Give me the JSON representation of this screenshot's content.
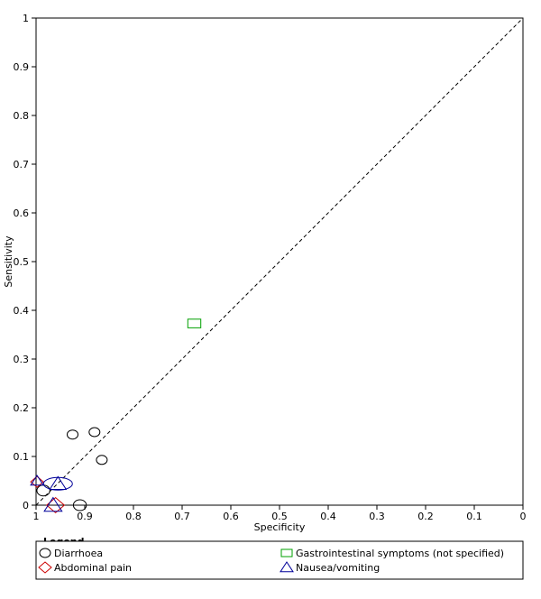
{
  "chart_data": {
    "type": "scatter",
    "xlabel": "Specificity",
    "ylabel": "Sensitivity",
    "x_reversed": true,
    "xlim": [
      1,
      0
    ],
    "ylim": [
      0,
      1
    ],
    "x_ticks": [
      "1",
      "0.9",
      "0.8",
      "0.7",
      "0.6",
      "0.5",
      "0.4",
      "0.3",
      "0.2",
      "0.1",
      "0"
    ],
    "y_ticks": [
      "0",
      "0.1",
      "0.2",
      "0.3",
      "0.4",
      "0.5",
      "0.6",
      "0.7",
      "0.8",
      "0.9",
      "1"
    ],
    "diagonal_reference_line": true,
    "grid": false,
    "legend": {
      "title": "Legend",
      "position": "bottom",
      "entries": [
        {
          "name": "Diarrhoea",
          "marker": "circle",
          "color": "#000000"
        },
        {
          "name": "Gastrointestinal symptoms (not specified)",
          "marker": "square",
          "color": "#00a000"
        },
        {
          "name": "Abdominal pain",
          "marker": "diamond",
          "color": "#cc0000"
        },
        {
          "name": "Nausea/vomiting",
          "marker": "triangle",
          "color": "#000099"
        }
      ]
    },
    "series": [
      {
        "name": "Diarrhoea",
        "marker": "circle",
        "color": "#000000",
        "points": [
          {
            "x": 0.925,
            "y": 0.145,
            "size": 1
          },
          {
            "x": 0.88,
            "y": 0.15,
            "size": 1
          },
          {
            "x": 0.865,
            "y": 0.093,
            "size": 1
          },
          {
            "x": 0.985,
            "y": 0.03,
            "size": 1.2
          },
          {
            "x": 0.91,
            "y": 0.0,
            "size": 1.2
          }
        ]
      },
      {
        "name": "Gastrointestinal symptoms (not specified)",
        "marker": "square",
        "color": "#00a000",
        "points": [
          {
            "x": 0.675,
            "y": 0.373,
            "size": 1.2
          }
        ]
      },
      {
        "name": "Abdominal pain",
        "marker": "diamond",
        "color": "#cc0000",
        "points": [
          {
            "x": 0.998,
            "y": 0.048,
            "size": 1
          },
          {
            "x": 0.96,
            "y": 0.0,
            "size": 1.4
          }
        ]
      },
      {
        "name": "Nausea/vomiting",
        "marker": "triangle",
        "color": "#000099",
        "points": [
          {
            "x": 0.998,
            "y": 0.05,
            "size": 1
          },
          {
            "x": 0.955,
            "y": 0.044,
            "size": 2.6
          },
          {
            "x": 0.965,
            "y": 0.0,
            "size": 1.4
          }
        ]
      }
    ]
  }
}
